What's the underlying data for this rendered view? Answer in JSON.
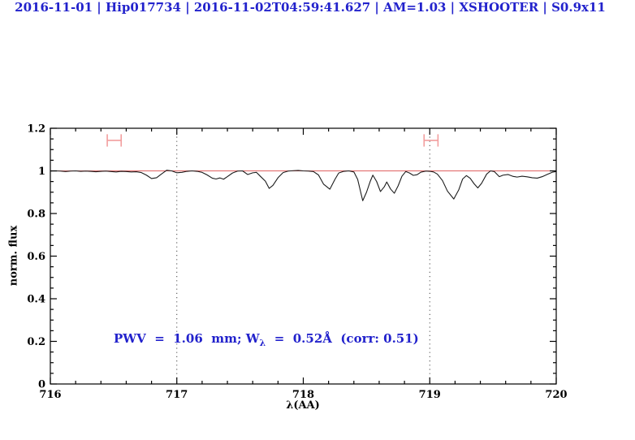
{
  "title": {
    "text": "2016-11-01 | Hip017734 | 2016-11-02T04:59:41.627 | AM=1.03 | XSHOOTER | S0.9x11",
    "color": "#2222cc"
  },
  "annotation": {
    "prefix": "PWV  =  1.06  mm; W",
    "subscript": "λ",
    "suffix": "  =  0.52Å  (corr: 0.51)",
    "color": "#2222cc"
  },
  "plot": {
    "xlabel": "λ(AA)",
    "ylabel": "norm. flux",
    "x_tick_labels": [
      "716",
      "717",
      "718",
      "719",
      "720"
    ],
    "y_tick_labels": [
      "0",
      "0.2",
      "0.4",
      "0.6",
      "0.8",
      "1",
      "1.2"
    ]
  },
  "chart_data": {
    "type": "line",
    "title": "2016-11-01 | Hip017734 | 2016-11-02T04:59:41.627 | AM=1.03 | XSHOOTER | S0.9x11",
    "xlabel": "λ(AA)",
    "ylabel": "norm. flux",
    "xlim": [
      716,
      720
    ],
    "ylim": [
      0,
      1.2
    ],
    "x_major_ticks": [
      716,
      717,
      718,
      719,
      720
    ],
    "x_minor_step": 0.2,
    "y_major_ticks": [
      0,
      0.2,
      0.4,
      0.6,
      0.8,
      1.0,
      1.2
    ],
    "y_minor_step": 0.05,
    "grid": false,
    "colors": {
      "spectrum": "#1c1c1c",
      "continuum": "#e06262",
      "marker": "#f29e9e",
      "vline": "#444444",
      "axis": "#000000",
      "text_blue": "#2222cc"
    },
    "vlines": [
      {
        "x": 717,
        "style": "dotted"
      },
      {
        "x": 719,
        "style": "dotted"
      }
    ],
    "continuum": {
      "y": 1.0,
      "x1": 716,
      "x2": 720
    },
    "markers": [
      {
        "type": "h-errorbar",
        "x1": 716.45,
        "x2": 716.56,
        "y": 1.143,
        "cap_half_height": 0.029
      },
      {
        "type": "h-errorbar",
        "x1": 718.955,
        "x2": 719.065,
        "y": 1.143,
        "cap_half_height": 0.029
      }
    ],
    "series": [
      {
        "name": "observed-spectrum",
        "points": [
          [
            716.0,
            0.999
          ],
          [
            716.04,
            1.0
          ],
          [
            716.08,
            0.999
          ],
          [
            716.12,
            0.997
          ],
          [
            716.16,
            0.999
          ],
          [
            716.2,
            1.0
          ],
          [
            716.24,
            0.998
          ],
          [
            716.28,
            0.999
          ],
          [
            716.32,
            0.998
          ],
          [
            716.36,
            0.996
          ],
          [
            716.4,
            0.998
          ],
          [
            716.44,
            0.999
          ],
          [
            716.48,
            0.997
          ],
          [
            716.52,
            0.995
          ],
          [
            716.56,
            0.998
          ],
          [
            716.6,
            0.997
          ],
          [
            716.64,
            0.995
          ],
          [
            716.68,
            0.996
          ],
          [
            716.72,
            0.992
          ],
          [
            716.76,
            0.98
          ],
          [
            716.8,
            0.964
          ],
          [
            716.84,
            0.968
          ],
          [
            716.88,
            0.986
          ],
          [
            716.92,
            1.003
          ],
          [
            716.96,
            1.0
          ],
          [
            717.0,
            0.991
          ],
          [
            717.04,
            0.993
          ],
          [
            717.08,
            0.998
          ],
          [
            717.12,
            1.0
          ],
          [
            717.16,
            0.998
          ],
          [
            717.2,
            0.993
          ],
          [
            717.24,
            0.981
          ],
          [
            717.28,
            0.966
          ],
          [
            717.31,
            0.962
          ],
          [
            717.34,
            0.967
          ],
          [
            717.37,
            0.961
          ],
          [
            717.4,
            0.973
          ],
          [
            717.44,
            0.99
          ],
          [
            717.48,
            0.999
          ],
          [
            717.52,
            1.0
          ],
          [
            717.56,
            0.983
          ],
          [
            717.6,
            0.991
          ],
          [
            717.63,
            0.993
          ],
          [
            717.66,
            0.975
          ],
          [
            717.7,
            0.952
          ],
          [
            717.73,
            0.918
          ],
          [
            717.76,
            0.932
          ],
          [
            717.8,
            0.968
          ],
          [
            717.84,
            0.992
          ],
          [
            717.88,
            0.999
          ],
          [
            717.92,
            1.001
          ],
          [
            717.96,
            1.002
          ],
          [
            718.0,
            1.0
          ],
          [
            718.04,
            0.999
          ],
          [
            718.08,
            0.997
          ],
          [
            718.12,
            0.981
          ],
          [
            718.16,
            0.938
          ],
          [
            718.21,
            0.914
          ],
          [
            718.25,
            0.96
          ],
          [
            718.28,
            0.99
          ],
          [
            718.32,
            0.998
          ],
          [
            718.36,
            1.0
          ],
          [
            718.4,
            0.995
          ],
          [
            718.43,
            0.96
          ],
          [
            718.47,
            0.86
          ],
          [
            718.5,
            0.9
          ],
          [
            718.53,
            0.952
          ],
          [
            718.55,
            0.98
          ],
          [
            718.58,
            0.95
          ],
          [
            718.61,
            0.903
          ],
          [
            718.64,
            0.925
          ],
          [
            718.66,
            0.948
          ],
          [
            718.69,
            0.915
          ],
          [
            718.72,
            0.895
          ],
          [
            718.75,
            0.93
          ],
          [
            718.78,
            0.975
          ],
          [
            718.81,
            0.997
          ],
          [
            718.84,
            0.99
          ],
          [
            718.87,
            0.979
          ],
          [
            718.9,
            0.982
          ],
          [
            718.93,
            0.994
          ],
          [
            718.97,
            0.999
          ],
          [
            719.0,
            0.998
          ],
          [
            719.03,
            0.995
          ],
          [
            719.06,
            0.985
          ],
          [
            719.1,
            0.955
          ],
          [
            719.14,
            0.905
          ],
          [
            719.19,
            0.868
          ],
          [
            719.23,
            0.912
          ],
          [
            719.26,
            0.962
          ],
          [
            719.29,
            0.978
          ],
          [
            719.32,
            0.965
          ],
          [
            719.35,
            0.94
          ],
          [
            719.38,
            0.92
          ],
          [
            719.41,
            0.942
          ],
          [
            719.45,
            0.985
          ],
          [
            719.48,
            1.0
          ],
          [
            719.51,
            0.997
          ],
          [
            719.55,
            0.973
          ],
          [
            719.58,
            0.98
          ],
          [
            719.62,
            0.983
          ],
          [
            719.66,
            0.974
          ],
          [
            719.69,
            0.971
          ],
          [
            719.73,
            0.975
          ],
          [
            719.77,
            0.972
          ],
          [
            719.81,
            0.968
          ],
          [
            719.85,
            0.966
          ],
          [
            719.89,
            0.973
          ],
          [
            719.93,
            0.984
          ],
          [
            719.97,
            0.994
          ],
          [
            720.0,
            0.997
          ]
        ]
      }
    ]
  }
}
